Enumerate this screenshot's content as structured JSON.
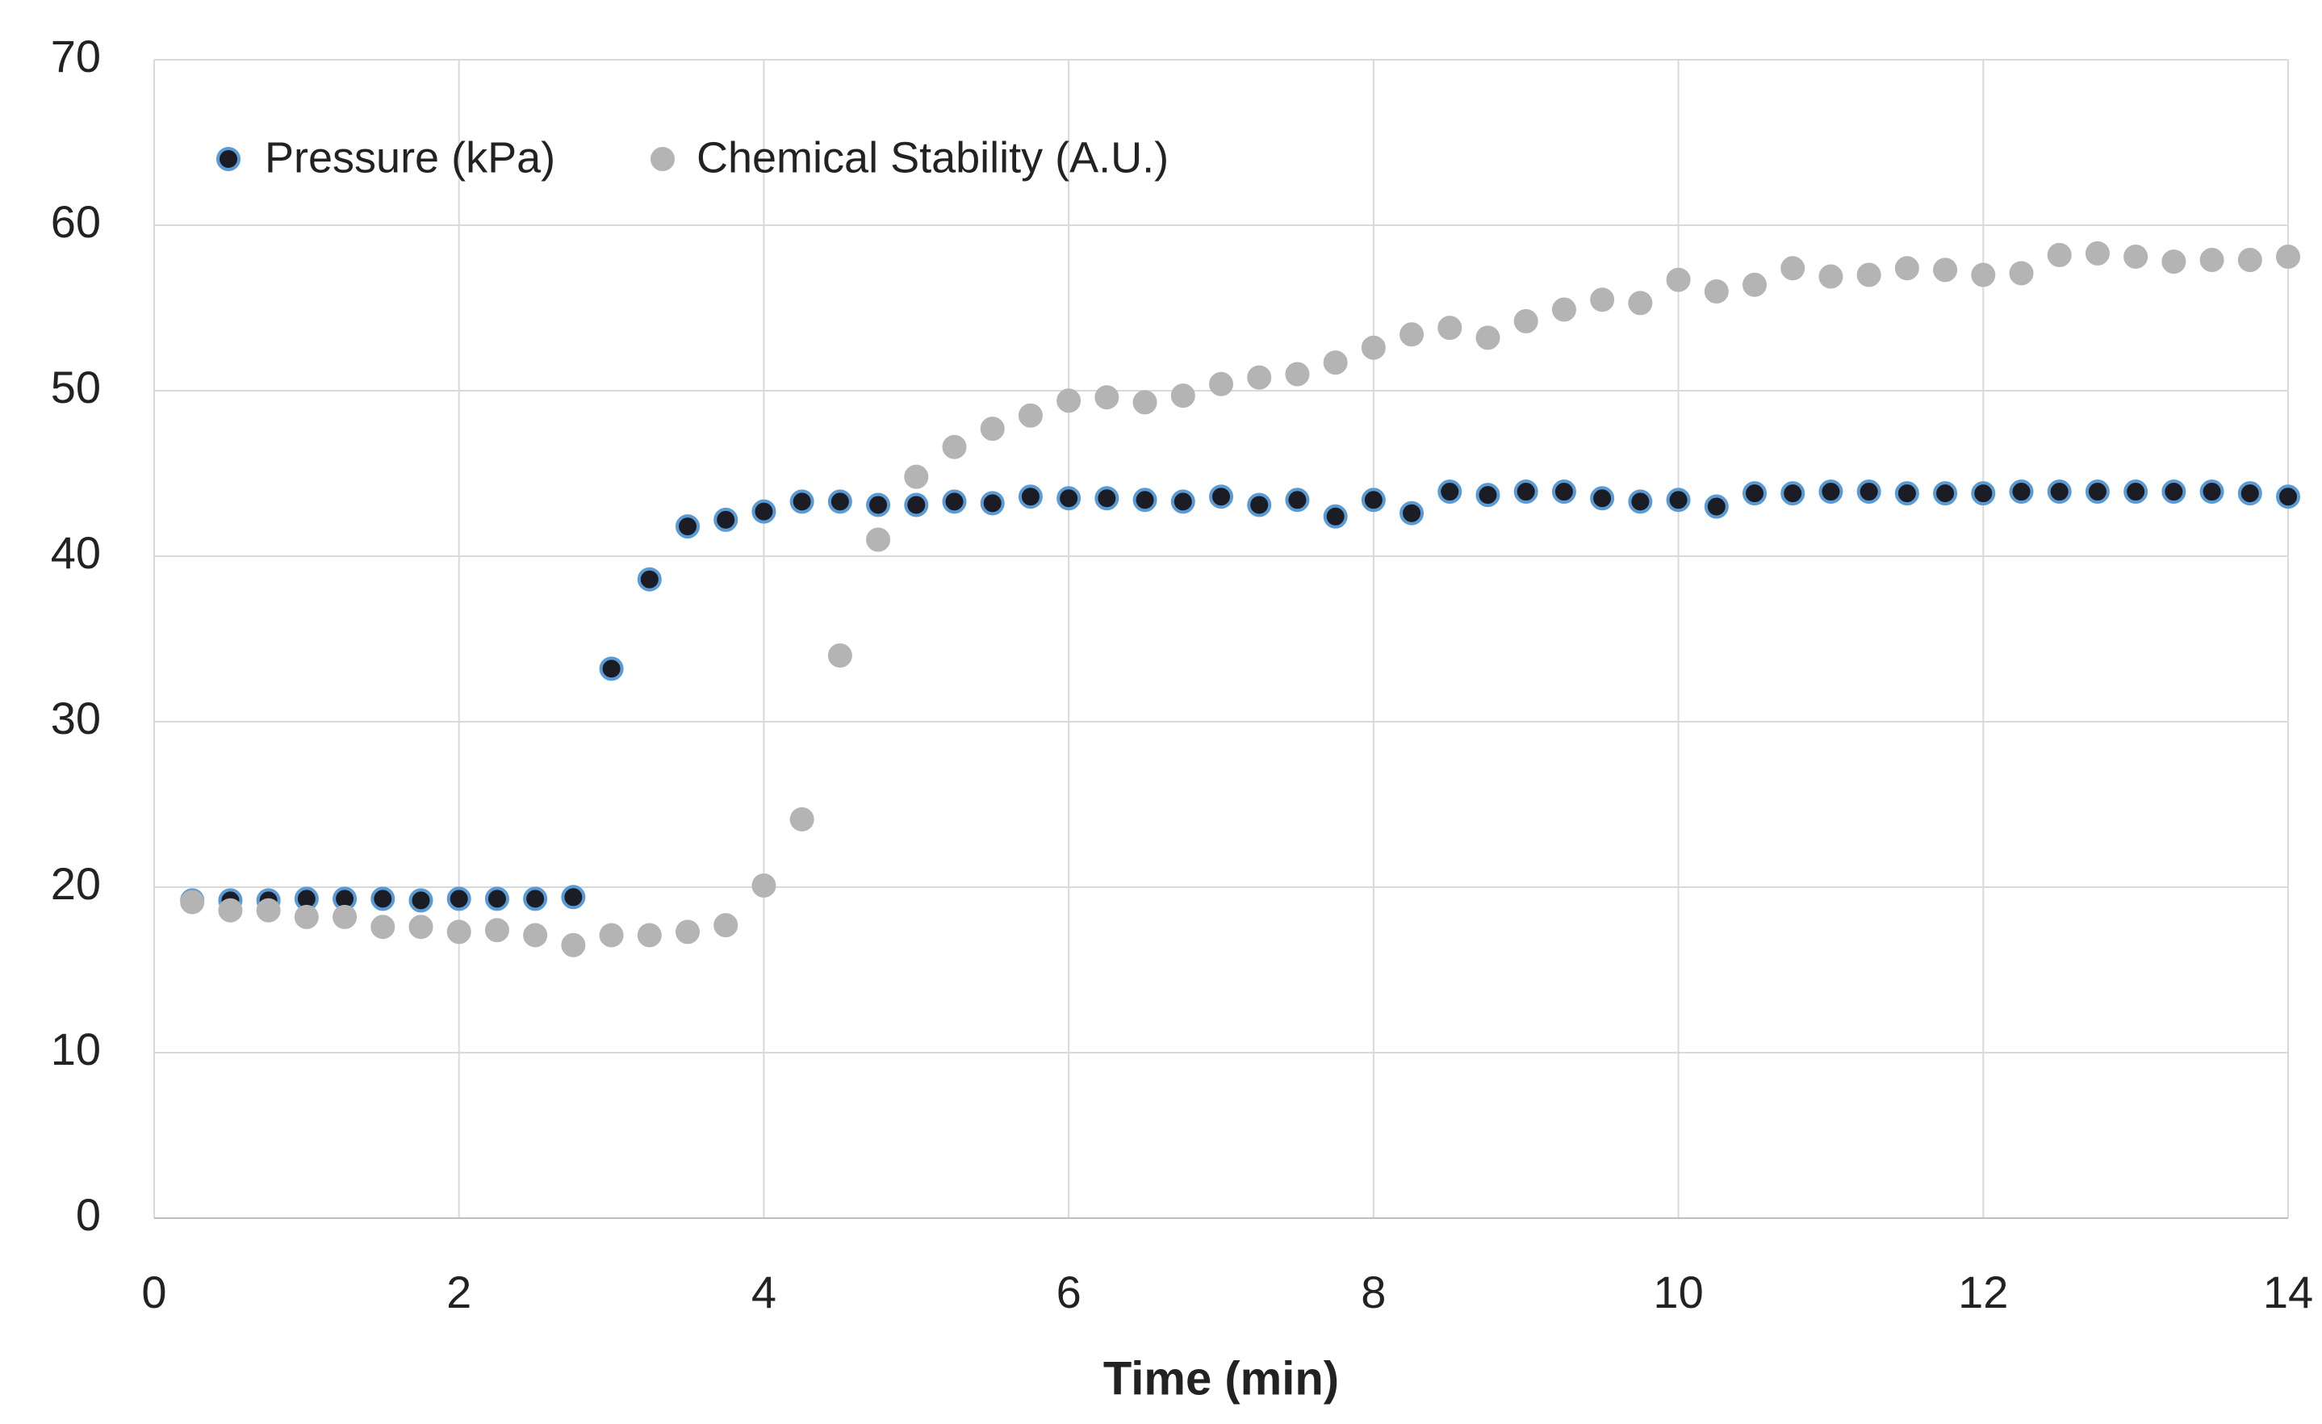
{
  "chart_data": {
    "type": "scatter",
    "xlabel": "Time (min)",
    "x": [
      0.25,
      0.5,
      0.75,
      1,
      1.25,
      1.5,
      1.75,
      2,
      2.25,
      2.5,
      2.75,
      3,
      3.25,
      3.5,
      3.75,
      4,
      4.25,
      4.5,
      4.75,
      5,
      5.25,
      5.5,
      5.75,
      6,
      6.25,
      6.5,
      6.75,
      7,
      7.25,
      7.5,
      7.75,
      8,
      8.25,
      8.5,
      8.75,
      9,
      9.25,
      9.5,
      9.75,
      10,
      10.25,
      10.5,
      10.75,
      11,
      11.25,
      11.5,
      11.75,
      12,
      12.25,
      12.5,
      12.75,
      13,
      13.25,
      13.5,
      13.75,
      14
    ],
    "series": [
      {
        "name": "Pressure (kPa)",
        "color": "#1c1c24",
        "edge_color": "#5b9bd5",
        "values": [
          19.2,
          19.2,
          19.2,
          19.3,
          19.3,
          19.3,
          19.2,
          19.3,
          19.3,
          19.3,
          19.4,
          33.2,
          38.6,
          41.8,
          42.2,
          42.7,
          43.3,
          43.3,
          43.1,
          43.1,
          43.3,
          43.2,
          43.6,
          43.5,
          43.5,
          43.4,
          43.3,
          43.6,
          43.1,
          43.4,
          42.4,
          43.4,
          42.6,
          43.9,
          43.7,
          43.9,
          43.9,
          43.5,
          43.3,
          43.4,
          43.0,
          43.8,
          43.8,
          43.9,
          43.9,
          43.8,
          43.8,
          43.8,
          43.9,
          43.9,
          43.9,
          43.9,
          43.9,
          43.9,
          43.8,
          43.6
        ]
      },
      {
        "name": "Chemical Stability (A.U.)",
        "color": "#b4b4b4",
        "edge_color": "#b4b4b4",
        "values": [
          19.1,
          18.6,
          18.6,
          18.2,
          18.2,
          17.6,
          17.6,
          17.3,
          17.4,
          17.1,
          16.5,
          17.1,
          17.1,
          17.3,
          17.7,
          20.1,
          24.1,
          34.0,
          41.0,
          44.8,
          46.6,
          47.7,
          48.5,
          49.4,
          49.6,
          49.3,
          49.7,
          50.4,
          50.8,
          51.0,
          51.7,
          52.6,
          53.4,
          53.8,
          53.2,
          54.2,
          54.9,
          55.5,
          55.3,
          56.7,
          56.0,
          56.4,
          57.4,
          56.9,
          57.0,
          57.4,
          57.3,
          57.0,
          57.1,
          58.2,
          58.3,
          58.1,
          57.8,
          57.9,
          57.9,
          58.1
        ]
      }
    ],
    "xlim": [
      0,
      14
    ],
    "xticks": [
      0,
      2,
      4,
      6,
      8,
      10,
      12,
      14
    ],
    "ylim": [
      0,
      70
    ],
    "yticks": [
      0,
      10,
      20,
      30,
      40,
      50,
      60,
      70
    ],
    "grid": true,
    "legend": "top-left"
  }
}
